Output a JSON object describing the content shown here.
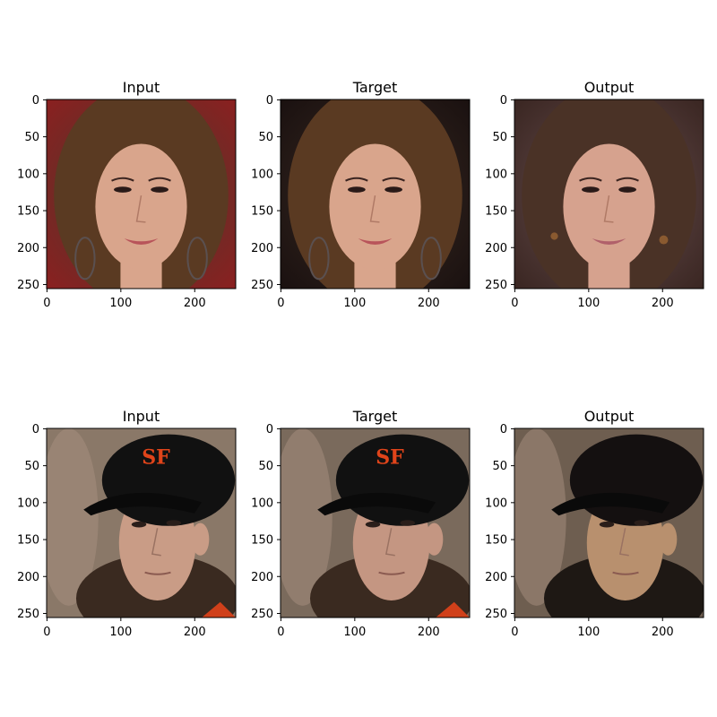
{
  "figure": {
    "rows": [
      {
        "name": "row-1",
        "panels": [
          {
            "title": "Input",
            "image": "face-woman-photo",
            "palette": {
              "bg": "#4a3a2e",
              "hair": "#5a3a22",
              "skin": "#d9a58c",
              "lips": "#b8545a",
              "accent": "#8a2020"
            }
          },
          {
            "title": "Target",
            "image": "face-woman-photo",
            "palette": {
              "bg": "#3a2a22",
              "hair": "#5a3a22",
              "skin": "#d9a58c",
              "lips": "#b8545a",
              "accent": "#1a1110"
            }
          },
          {
            "title": "Output",
            "image": "face-woman-generated",
            "palette": {
              "bg": "#6a5050",
              "hair": "#4a3226",
              "skin": "#d6a28e",
              "lips": "#b0606a",
              "accent": "#3a2622"
            }
          }
        ]
      },
      {
        "name": "row-2",
        "panels": [
          {
            "title": "Input",
            "image": "face-man-cap-photo",
            "palette": {
              "bg": "#8a7868",
              "hair": "#3a2a20",
              "skin": "#c99c86",
              "cap": "#111111",
              "logo": "#e0441a"
            }
          },
          {
            "title": "Target",
            "image": "face-man-cap-photo",
            "palette": {
              "bg": "#7a6a5c",
              "hair": "#3a2a20",
              "skin": "#c49682",
              "cap": "#111111",
              "logo": "#e0441a"
            }
          },
          {
            "title": "Output",
            "image": "face-man-generated",
            "palette": {
              "bg": "#6e5e50",
              "hair": "#1e1814",
              "skin": "#b8906e",
              "cap": "#141010",
              "logo": ""
            }
          }
        ]
      }
    ],
    "axes": {
      "x_ticks": [
        "0",
        "100",
        "200"
      ],
      "y_ticks": [
        "0",
        "50",
        "100",
        "150",
        "200",
        "250"
      ],
      "x_tick_values": [
        0,
        100,
        200
      ],
      "y_tick_values": [
        0,
        50,
        100,
        150,
        200,
        250
      ],
      "extent": [
        0,
        256
      ]
    }
  }
}
